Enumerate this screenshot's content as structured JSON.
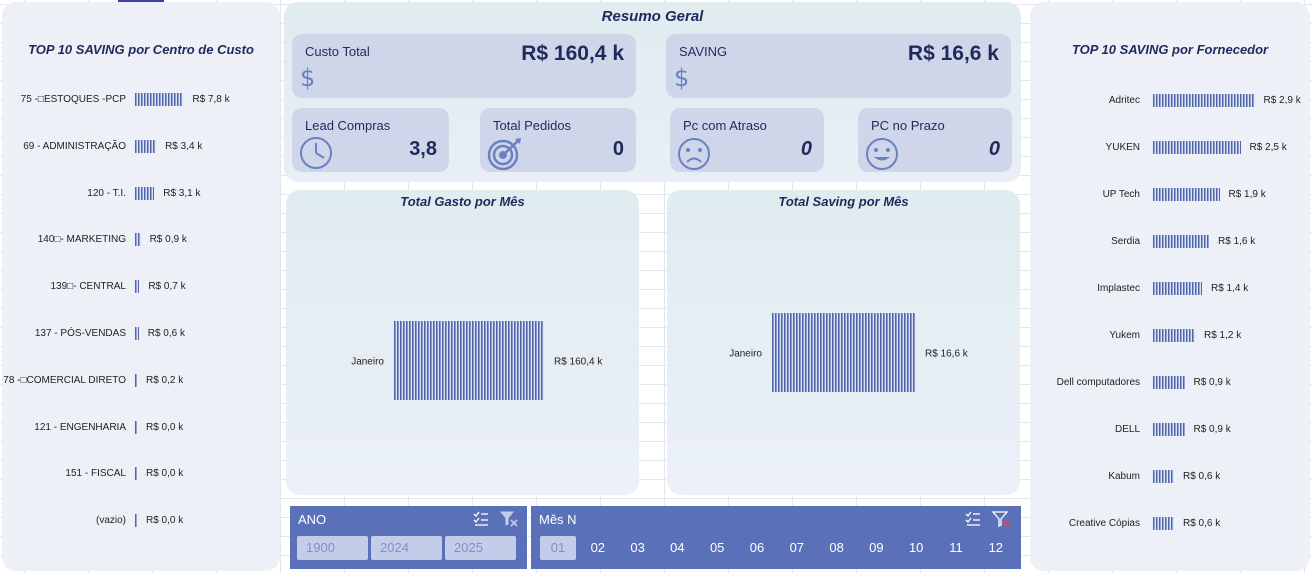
{
  "colors": {
    "accent": "#5a71b9",
    "panel": "#eef0f8",
    "card": "#cfd6ea",
    "bar": "#4f65ad",
    "title": "#1f2a5c"
  },
  "left_panel": {
    "title": "TOP 10 SAVING por Centro de Custo",
    "chart_data": {
      "type": "bar",
      "orientation": "horizontal",
      "categories": [
        "75 -\u0000ESTOQUES -PCP",
        "69 - ADMINISTRAÇÃO",
        "120 - T.I.",
        "140\u0000- MARKETING",
        "139\u0000- CENTRAL",
        "137 - PÓS-VENDAS",
        "78 -\u0000COMERCIAL DIRETO",
        "121 - ENGENHARIA",
        "151 - FISCAL",
        "(vazio)"
      ],
      "values": [
        7.8,
        3.4,
        3.1,
        0.9,
        0.7,
        0.6,
        0.2,
        0.0,
        0.0,
        0.0
      ],
      "labels": [
        "R$ 7,8 k",
        "R$ 3,4 k",
        "R$ 3,1 k",
        "R$ 0,9 k",
        "R$ 0,7 k",
        "R$ 0,6 k",
        "R$ 0,2 k",
        "R$ 0,0 k",
        "R$ 0,0 k",
        "R$ 0,0 k"
      ],
      "title": "TOP 10 SAVING por Centro de Custo"
    }
  },
  "right_panel": {
    "title": "TOP 10 SAVING por Fornecedor",
    "chart_data": {
      "type": "bar",
      "orientation": "horizontal",
      "categories": [
        "Adritec",
        "YUKEN",
        "UP Tech",
        "Serdia",
        "Implastec",
        "Yukem",
        "Dell computadores",
        "DELL",
        "Kabum",
        "Creative Cópias"
      ],
      "values": [
        2.9,
        2.5,
        1.9,
        1.6,
        1.4,
        1.2,
        0.9,
        0.9,
        0.6,
        0.6
      ],
      "labels": [
        "R$ 2,9 k",
        "R$ 2,5 k",
        "R$ 1,9 k",
        "R$ 1,6 k",
        "R$ 1,4 k",
        "R$ 1,2 k",
        "R$ 0,9 k",
        "R$ 0,9 k",
        "R$ 0,6 k",
        "R$ 0,6 k"
      ],
      "title": "TOP 10 SAVING por Fornecedor"
    }
  },
  "summary": {
    "title": "Resumo Geral",
    "custo_total": {
      "label": "Custo Total",
      "value": "R$ 160,4 k",
      "icon": "dollar-icon"
    },
    "saving": {
      "label": "SAVING",
      "value": "R$ 16,6 k",
      "icon": "dollar-icon"
    },
    "lead_compras": {
      "label": "Lead Compras",
      "value": "3,8",
      "icon": "clock-icon"
    },
    "total_pedidos": {
      "label": "Total Pedidos",
      "value": "0",
      "icon": "target-icon"
    },
    "pc_atraso": {
      "label": "Pc com Atraso",
      "value": "0",
      "icon": "sad-face-icon"
    },
    "pc_prazo": {
      "label": "PC no Prazo",
      "value": "0",
      "icon": "happy-face-icon"
    }
  },
  "gasto_chart": {
    "title": "Total Gasto por Mês",
    "chart_data": {
      "type": "bar",
      "orientation": "horizontal",
      "categories": [
        "Janeiro"
      ],
      "values": [
        160.4
      ],
      "labels": [
        "R$ 160,4 k"
      ],
      "title": "Total Gasto por Mês"
    }
  },
  "saving_chart": {
    "title": "Total Saving por Mês",
    "chart_data": {
      "type": "bar",
      "orientation": "horizontal",
      "categories": [
        "Janeiro"
      ],
      "values": [
        16.6
      ],
      "labels": [
        "R$ 16,6 k"
      ],
      "title": "Total Saving por Mês"
    }
  },
  "slicer_ano": {
    "title": "ANO",
    "icons": [
      "multi-select-icon",
      "clear-filter-icon"
    ],
    "items": [
      "1900",
      "2024",
      "2025"
    ]
  },
  "slicer_mes": {
    "title": "Mês N",
    "icons": [
      "multi-select-icon",
      "clear-filter-icon"
    ],
    "items": [
      "01",
      "02",
      "03",
      "04",
      "05",
      "06",
      "07",
      "08",
      "09",
      "10",
      "11",
      "12"
    ],
    "selected": "01"
  }
}
